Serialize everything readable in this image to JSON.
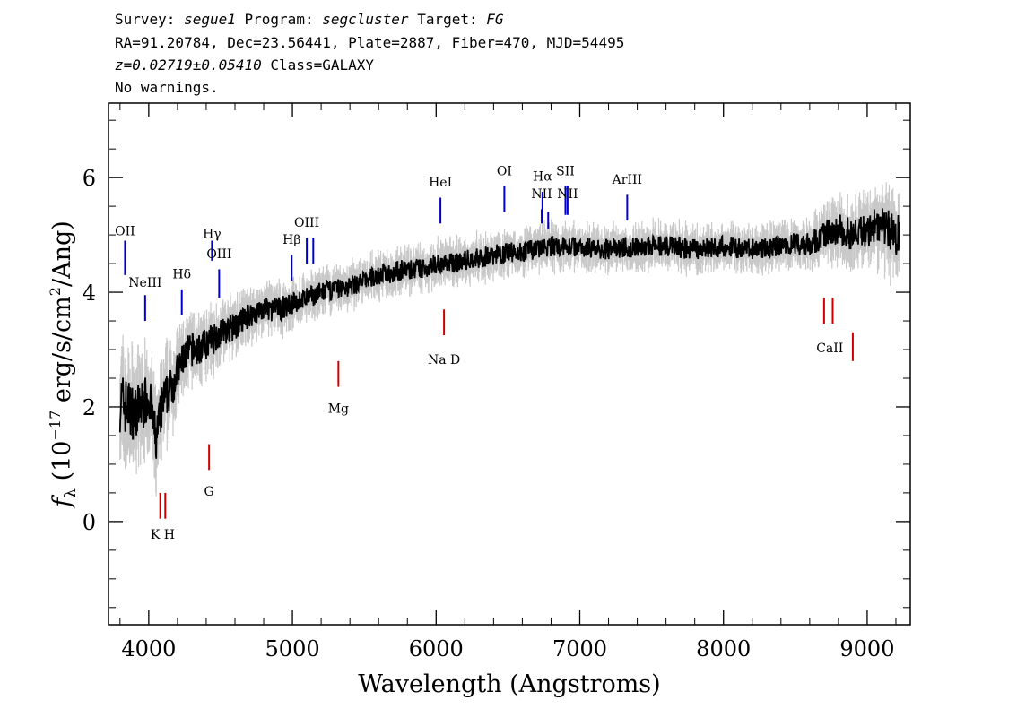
{
  "header": {
    "survey_label": "Survey:",
    "survey": "segue1",
    "program_label": "Program:",
    "program": "segcluster",
    "target_label": "Target:",
    "target": "FG",
    "line2": "RA=91.20784, Dec=23.56441, Plate=2887, Fiber=470, MJD=54495",
    "z": "z=0.02719±0.05410",
    "class": "Class=GALAXY",
    "warnings": "No warnings."
  },
  "chart_data": {
    "type": "line",
    "xlabel": "Wavelength (Angstroms)",
    "ylabel_prefix": "f",
    "ylabel_sub": "λ",
    "ylabel_main": "(10",
    "ylabel_exp": "−17",
    "ylabel_rest": "erg/s/cm",
    "ylabel_exp2": "2",
    "ylabel_end": "/Ang)",
    "xlim": [
      3720,
      9300
    ],
    "ylim": [
      -1.8,
      7.3
    ],
    "xticks": [
      4000,
      5000,
      6000,
      7000,
      8000,
      9000
    ],
    "yticks": [
      0,
      2,
      4,
      6
    ],
    "series": [
      {
        "color": "#000000",
        "x": [
          3800,
          3850,
          3900,
          3950,
          4000,
          4050,
          4100,
          4150,
          4200,
          4250,
          4300,
          4350,
          4400,
          4450,
          4500,
          4600,
          4700,
          4800,
          4900,
          5000,
          5100,
          5200,
          5300,
          5400,
          5500,
          5600,
          5700,
          5800,
          5900,
          6000,
          6100,
          6200,
          6300,
          6400,
          6500,
          6600,
          6700,
          6800,
          6900,
          7000,
          7200,
          7400,
          7600,
          7800,
          8000,
          8200,
          8400,
          8600,
          8700,
          8800,
          8900,
          9000,
          9100,
          9200
        ],
        "y": [
          2.1,
          2.0,
          1.9,
          2.0,
          2.2,
          1.4,
          2.1,
          2.3,
          2.6,
          2.9,
          3.0,
          3.0,
          3.1,
          3.2,
          3.3,
          3.4,
          3.6,
          3.7,
          3.7,
          3.8,
          3.9,
          4.0,
          4.05,
          4.1,
          4.2,
          4.3,
          4.35,
          4.4,
          4.4,
          4.5,
          4.5,
          4.55,
          4.6,
          4.65,
          4.7,
          4.7,
          4.75,
          4.8,
          4.8,
          4.8,
          4.75,
          4.8,
          4.8,
          4.75,
          4.8,
          4.75,
          4.8,
          4.85,
          5.0,
          5.1,
          5.0,
          5.1,
          5.2,
          5.0
        ]
      }
    ],
    "error_band": {
      "color": "#c8c8c8",
      "halfwidth": [
        0.9,
        0.85,
        0.8,
        0.75,
        0.7,
        0.7,
        0.65,
        0.6,
        0.55,
        0.5,
        0.5,
        0.45,
        0.45,
        0.45,
        0.4,
        0.4,
        0.35,
        0.35,
        0.35,
        0.3,
        0.3,
        0.3,
        0.3,
        0.3,
        0.3,
        0.3,
        0.3,
        0.3,
        0.3,
        0.3,
        0.3,
        0.3,
        0.3,
        0.3,
        0.3,
        0.3,
        0.3,
        0.3,
        0.3,
        0.3,
        0.3,
        0.3,
        0.3,
        0.3,
        0.3,
        0.3,
        0.3,
        0.35,
        0.4,
        0.45,
        0.45,
        0.5,
        0.55,
        0.6
      ]
    },
    "emission_lines": [
      {
        "label": "OII",
        "x": 3835,
        "y0": 4.3,
        "y1": 4.9,
        "ly": 4.9
      },
      {
        "label": "NeIII",
        "x": 3975,
        "y0": 3.5,
        "y1": 3.95,
        "ly": 4.0
      },
      {
        "label": "Hδ",
        "x": 4230,
        "y0": 3.6,
        "y1": 4.05,
        "ly": 4.15
      },
      {
        "label": "Hγ",
        "x": 4440,
        "y0": 4.55,
        "y1": 4.9,
        "ly": 4.85
      },
      {
        "label": "OIII",
        "x": 4490,
        "y0": 3.9,
        "y1": 4.4,
        "ly": 4.5
      },
      {
        "label": "Hβ",
        "x": 4995,
        "y0": 4.2,
        "y1": 4.65,
        "ly": 4.75
      },
      {
        "label": "OIII",
        "x": 5100,
        "y0": 4.5,
        "y1": 4.95,
        "ly": 5.05
      },
      {
        "label": "OIII",
        "x": 5145,
        "y0": 4.5,
        "y1": 4.95,
        "ly": ""
      },
      {
        "label": "HeI",
        "x": 6030,
        "y0": 5.2,
        "y1": 5.65,
        "ly": 5.75
      },
      {
        "label": "OI",
        "x": 6475,
        "y0": 5.4,
        "y1": 5.85,
        "ly": 5.95
      },
      {
        "label": "NII",
        "x": 6735,
        "y0": 5.2,
        "y1": 5.45,
        "ly": 5.55
      },
      {
        "label": "Hα",
        "x": 6740,
        "y0": 5.3,
        "y1": 5.75,
        "ly": 5.85
      },
      {
        "label": "NII",
        "x": 6780,
        "y0": 5.1,
        "y1": 5.4,
        "ly": ""
      },
      {
        "label": "SII",
        "x": 6900,
        "y0": 5.35,
        "y1": 5.85,
        "ly": 5.95
      },
      {
        "label": "NII",
        "x": 6915,
        "y0": 5.35,
        "y1": 5.85,
        "ly": 5.55
      },
      {
        "label": "ArIII",
        "x": 7330,
        "y0": 5.25,
        "y1": 5.7,
        "ly": 5.8
      }
    ],
    "absorption_lines": [
      {
        "label": "K",
        "x": 4080,
        "y0": 0.05,
        "y1": 0.5
      },
      {
        "label": "H",
        "x": 4115,
        "y0": 0.05,
        "y1": 0.5
      },
      {
        "label": "G",
        "x": 4420,
        "y0": 0.9,
        "y1": 1.35
      },
      {
        "label": "Mg",
        "x": 5320,
        "y0": 2.35,
        "y1": 2.8
      },
      {
        "label": "Na D",
        "x": 6055,
        "y0": 3.25,
        "y1": 3.7
      },
      {
        "label": "CaII",
        "x": 8700,
        "y0": 3.45,
        "y1": 3.9
      },
      {
        "label": "CaII",
        "x": 8760,
        "y0": 3.45,
        "y1": 3.9
      },
      {
        "label": "CaII",
        "x": 8900,
        "y0": 2.8,
        "y1": 3.3
      }
    ],
    "absorption_label_text": {
      "kh": "K H",
      "g": "G",
      "mg": "Mg",
      "nad": "Na D",
      "caii": "CaII"
    }
  }
}
